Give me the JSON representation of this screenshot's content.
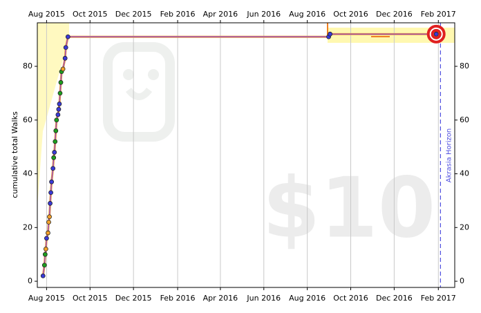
{
  "chart_data": {
    "type": "line",
    "y_label": "cumulative total Walks",
    "x": [
      "2015-07-27",
      "2015-07-29",
      "2015-07-30",
      "2015-07-31",
      "2015-08-01",
      "2015-08-03",
      "2015-08-04",
      "2015-08-05",
      "2015-08-06",
      "2015-08-07",
      "2015-08-08",
      "2015-08-10",
      "2015-08-11",
      "2015-08-12",
      "2015-08-13",
      "2015-08-14",
      "2015-08-15",
      "2015-08-17",
      "2015-08-18",
      "2015-08-19",
      "2015-08-20",
      "2015-08-21",
      "2015-08-22",
      "2015-08-24",
      "2015-08-27",
      "2015-08-28",
      "2015-08-31",
      "2016-08-31",
      "2016-09-02",
      "2017-01-29"
    ],
    "values": [
      2,
      6,
      10,
      12,
      16,
      18,
      22,
      24,
      29,
      33,
      37,
      42,
      46,
      48,
      52,
      56,
      60,
      62,
      64,
      66,
      70,
      74,
      78,
      79,
      83,
      87,
      91,
      91,
      92,
      92
    ],
    "point_colors": [
      "#3a3ad8",
      "#1e9e1e",
      "#1e9e1e",
      "#f2a12a",
      "#3a3ad8",
      "#f2a12a",
      "#f2a12a",
      "#f2a12a",
      "#3a3ad8",
      "#3a3ad8",
      "#3a3ad8",
      "#3a3ad8",
      "#1e9e1e",
      "#3a3ad8",
      "#1e9e1e",
      "#1e9e1e",
      "#1e9e1e",
      "#3a3ad8",
      "#3a3ad8",
      "#3a3ad8",
      "#1e9e1e",
      "#1e9e1e",
      "#1e9e1e",
      "#f2a12a",
      "#3a3ad8",
      "#3a3ad8",
      "#3a3ad8",
      "#3a3ad8",
      "#3a3ad8",
      "#3a3ad8"
    ],
    "line_color": "#9b4fc0",
    "xlim": [
      "2015-07-19",
      "2017-02-24"
    ],
    "xticks": [
      {
        "value": "2015-08-01",
        "label": "Aug 2015"
      },
      {
        "value": "2015-10-01",
        "label": "Oct 2015"
      },
      {
        "value": "2015-12-01",
        "label": "Dec 2015"
      },
      {
        "value": "2016-02-01",
        "label": "Feb 2016"
      },
      {
        "value": "2016-04-01",
        "label": "Apr 2016"
      },
      {
        "value": "2016-06-01",
        "label": "Jun 2016"
      },
      {
        "value": "2016-08-01",
        "label": "Aug 2016"
      },
      {
        "value": "2016-10-01",
        "label": "Oct 2016"
      },
      {
        "value": "2016-12-01",
        "label": "Dec 2016"
      },
      {
        "value": "2017-02-01",
        "label": "Feb 2017"
      }
    ],
    "ylim": [
      -2.3,
      96.2
    ],
    "yticks": [
      0,
      20,
      40,
      60,
      80
    ],
    "grid": true,
    "akrasia_horizon": {
      "x": "2017-02-04",
      "label": "Akrasia Horizon"
    },
    "pledge": "$10"
  }
}
